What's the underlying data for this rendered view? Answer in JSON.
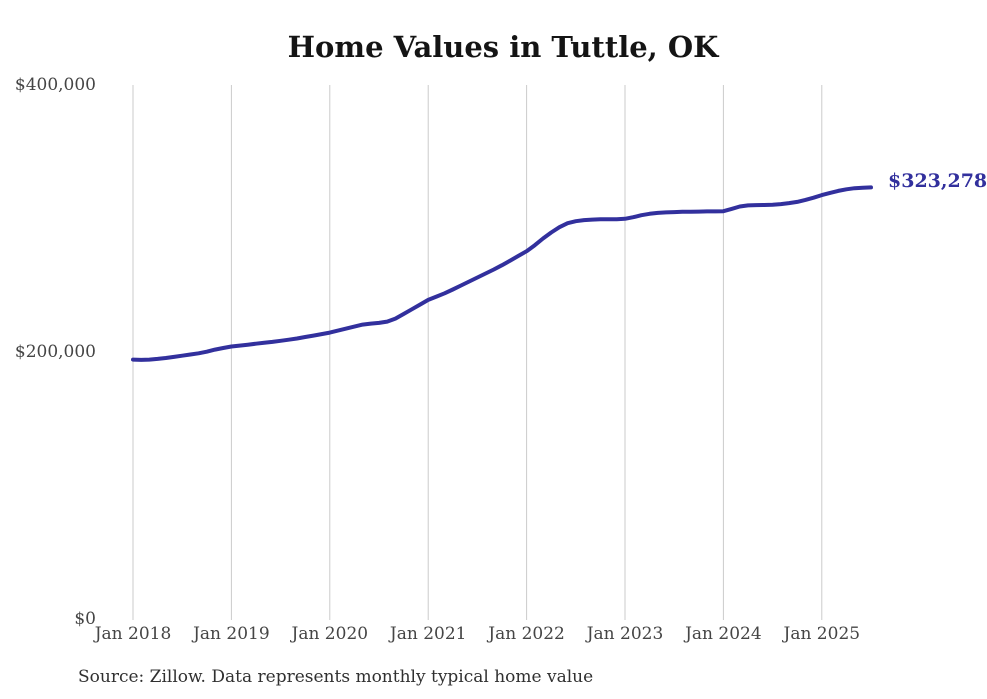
{
  "source_note": "Source: Zillow. Data represents monthly typical home value",
  "colors": {
    "line": "#32309d",
    "end_label": "#32309d",
    "grid": "#cbcbcb",
    "axis_text": "#454545",
    "title_text": "#141414",
    "source_text": "#303030",
    "background": "#ffffff"
  },
  "chart_data": {
    "type": "line",
    "title": "Home Values in Tuttle, OK",
    "xlabel": "",
    "ylabel": "",
    "ylim": [
      0,
      400000
    ],
    "grid": "vertical-only",
    "legend": "none",
    "y_ticks": [
      {
        "value": 0,
        "label": "$0"
      },
      {
        "value": 200000,
        "label": "$200,000"
      },
      {
        "value": 400000,
        "label": "$400,000"
      }
    ],
    "x_ticks": [
      "Jan 2018",
      "Jan 2019",
      "Jan 2020",
      "Jan 2021",
      "Jan 2022",
      "Jan 2023",
      "Jan 2024",
      "Jan 2025"
    ],
    "x_unit": "month",
    "x_range": [
      "Jan 2018",
      "Jul 2025"
    ],
    "annotation": {
      "text": "$323,278",
      "value": 323278,
      "position": "line-end"
    },
    "series": [
      {
        "name": "Monthly typical home value",
        "values": [
          194300,
          194100,
          194300,
          194800,
          195500,
          196300,
          197200,
          198100,
          199000,
          200200,
          201800,
          203000,
          204100,
          204800,
          205500,
          206200,
          206900,
          207600,
          208400,
          209200,
          210100,
          211200,
          212300,
          213400,
          214500,
          216000,
          217500,
          219000,
          220500,
          221300,
          221800,
          222800,
          225000,
          228500,
          232000,
          235500,
          239000,
          241500,
          244000,
          246800,
          249800,
          252800,
          255800,
          258800,
          261800,
          265000,
          268500,
          272000,
          275500,
          280000,
          285000,
          289500,
          293500,
          296500,
          298000,
          298800,
          299200,
          299400,
          299400,
          299500,
          299800,
          301000,
          302500,
          303500,
          304200,
          304600,
          304800,
          305000,
          305100,
          305200,
          305300,
          305300,
          305500,
          307200,
          309000,
          309800,
          310000,
          310100,
          310300,
          310800,
          311500,
          312400,
          313900,
          315600,
          317500,
          319200,
          320700,
          321900,
          322700,
          323100,
          323278
        ]
      }
    ]
  }
}
